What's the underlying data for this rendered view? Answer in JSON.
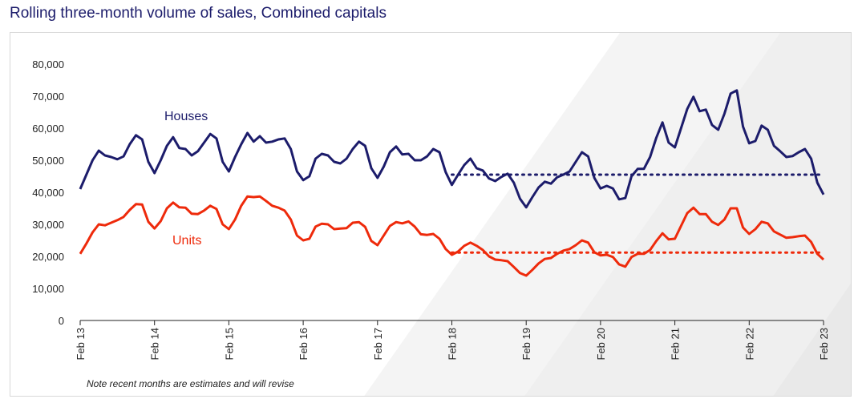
{
  "title": "Rolling three-month volume of sales, Combined capitals",
  "note": "Note recent months are estimates and will revise",
  "chart_data": {
    "type": "line",
    "title": "Rolling three-month volume of sales, Combined capitals",
    "x_start": "Feb 13",
    "x_end": "Feb 23",
    "frequency": "monthly",
    "x_tick_labels": [
      "Feb 13",
      "Feb 14",
      "Feb 15",
      "Feb 16",
      "Feb 17",
      "Feb 18",
      "Feb 19",
      "Feb 20",
      "Feb 21",
      "Feb 22",
      "Feb 23"
    ],
    "y_tick_labels": [
      "0",
      "10,000",
      "20,000",
      "30,000",
      "40,000",
      "50,000",
      "60,000",
      "70,000",
      "80,000"
    ],
    "ylim": [
      0,
      80000
    ],
    "grid": false,
    "series": [
      {
        "name": "Houses",
        "color": "#1c1c6b",
        "values": [
          41000,
          45500,
          50000,
          53000,
          51500,
          51000,
          50300,
          51200,
          55000,
          57800,
          56500,
          49500,
          46000,
          50000,
          54500,
          57200,
          53800,
          53500,
          51500,
          52800,
          55500,
          58200,
          56800,
          49500,
          46500,
          51000,
          55000,
          58500,
          55800,
          57500,
          55500,
          55800,
          56500,
          56800,
          53500,
          46500,
          43800,
          45000,
          50500,
          52000,
          51500,
          49500,
          49000,
          50500,
          53500,
          55800,
          54500,
          47500,
          44500,
          48000,
          52500,
          54300,
          51800,
          52000,
          50000,
          50000,
          51200,
          53500,
          52500,
          46300,
          42300,
          45500,
          48500,
          50500,
          47500,
          46800,
          44300,
          43500,
          44800,
          45800,
          43000,
          38000,
          35300,
          38500,
          41500,
          43300,
          42700,
          44700,
          45500,
          46500,
          49500,
          52500,
          51200,
          44500,
          41200,
          42000,
          41200,
          37800,
          38200,
          45000,
          47300,
          47300,
          51000,
          57000,
          61800,
          55500,
          54000,
          60000,
          66000,
          69800,
          65300,
          65800,
          61000,
          59500,
          64500,
          70800,
          71800,
          60500,
          55300,
          56000,
          60800,
          59500,
          54500,
          52800,
          51000,
          51300,
          52500,
          53500,
          50500,
          43000,
          39300
        ],
        "average": 45500,
        "average_from": "Feb 18"
      },
      {
        "name": "Units",
        "color": "#ee2a0b",
        "values": [
          20800,
          24000,
          27500,
          30000,
          29700,
          30500,
          31300,
          32300,
          34500,
          36300,
          36200,
          30800,
          28700,
          31000,
          35000,
          36800,
          35300,
          35200,
          33300,
          33200,
          34300,
          35800,
          34800,
          30000,
          28500,
          31500,
          35800,
          38700,
          38500,
          38700,
          37300,
          35800,
          35200,
          34300,
          31500,
          26500,
          25000,
          25500,
          29300,
          30200,
          30000,
          28500,
          28700,
          28800,
          30500,
          30700,
          29200,
          24800,
          23500,
          26500,
          29500,
          30700,
          30300,
          30900,
          29300,
          26900,
          26700,
          27000,
          25500,
          22300,
          20500,
          21500,
          23300,
          24300,
          23300,
          22000,
          20000,
          19000,
          18800,
          18500,
          16700,
          14800,
          14000,
          15800,
          17800,
          19200,
          19500,
          20800,
          21800,
          22300,
          23500,
          25000,
          24300,
          21300,
          20300,
          20500,
          19800,
          17500,
          16800,
          19800,
          20800,
          20800,
          22000,
          24800,
          27200,
          25300,
          25500,
          29500,
          33500,
          35200,
          33200,
          33200,
          30800,
          29800,
          31500,
          35000,
          35000,
          29000,
          27000,
          28500,
          30800,
          30300,
          27800,
          26800,
          25800,
          26000,
          26300,
          26500,
          24500,
          20800,
          19000
        ],
        "average": 21200,
        "average_from": "Feb 18"
      }
    ]
  }
}
